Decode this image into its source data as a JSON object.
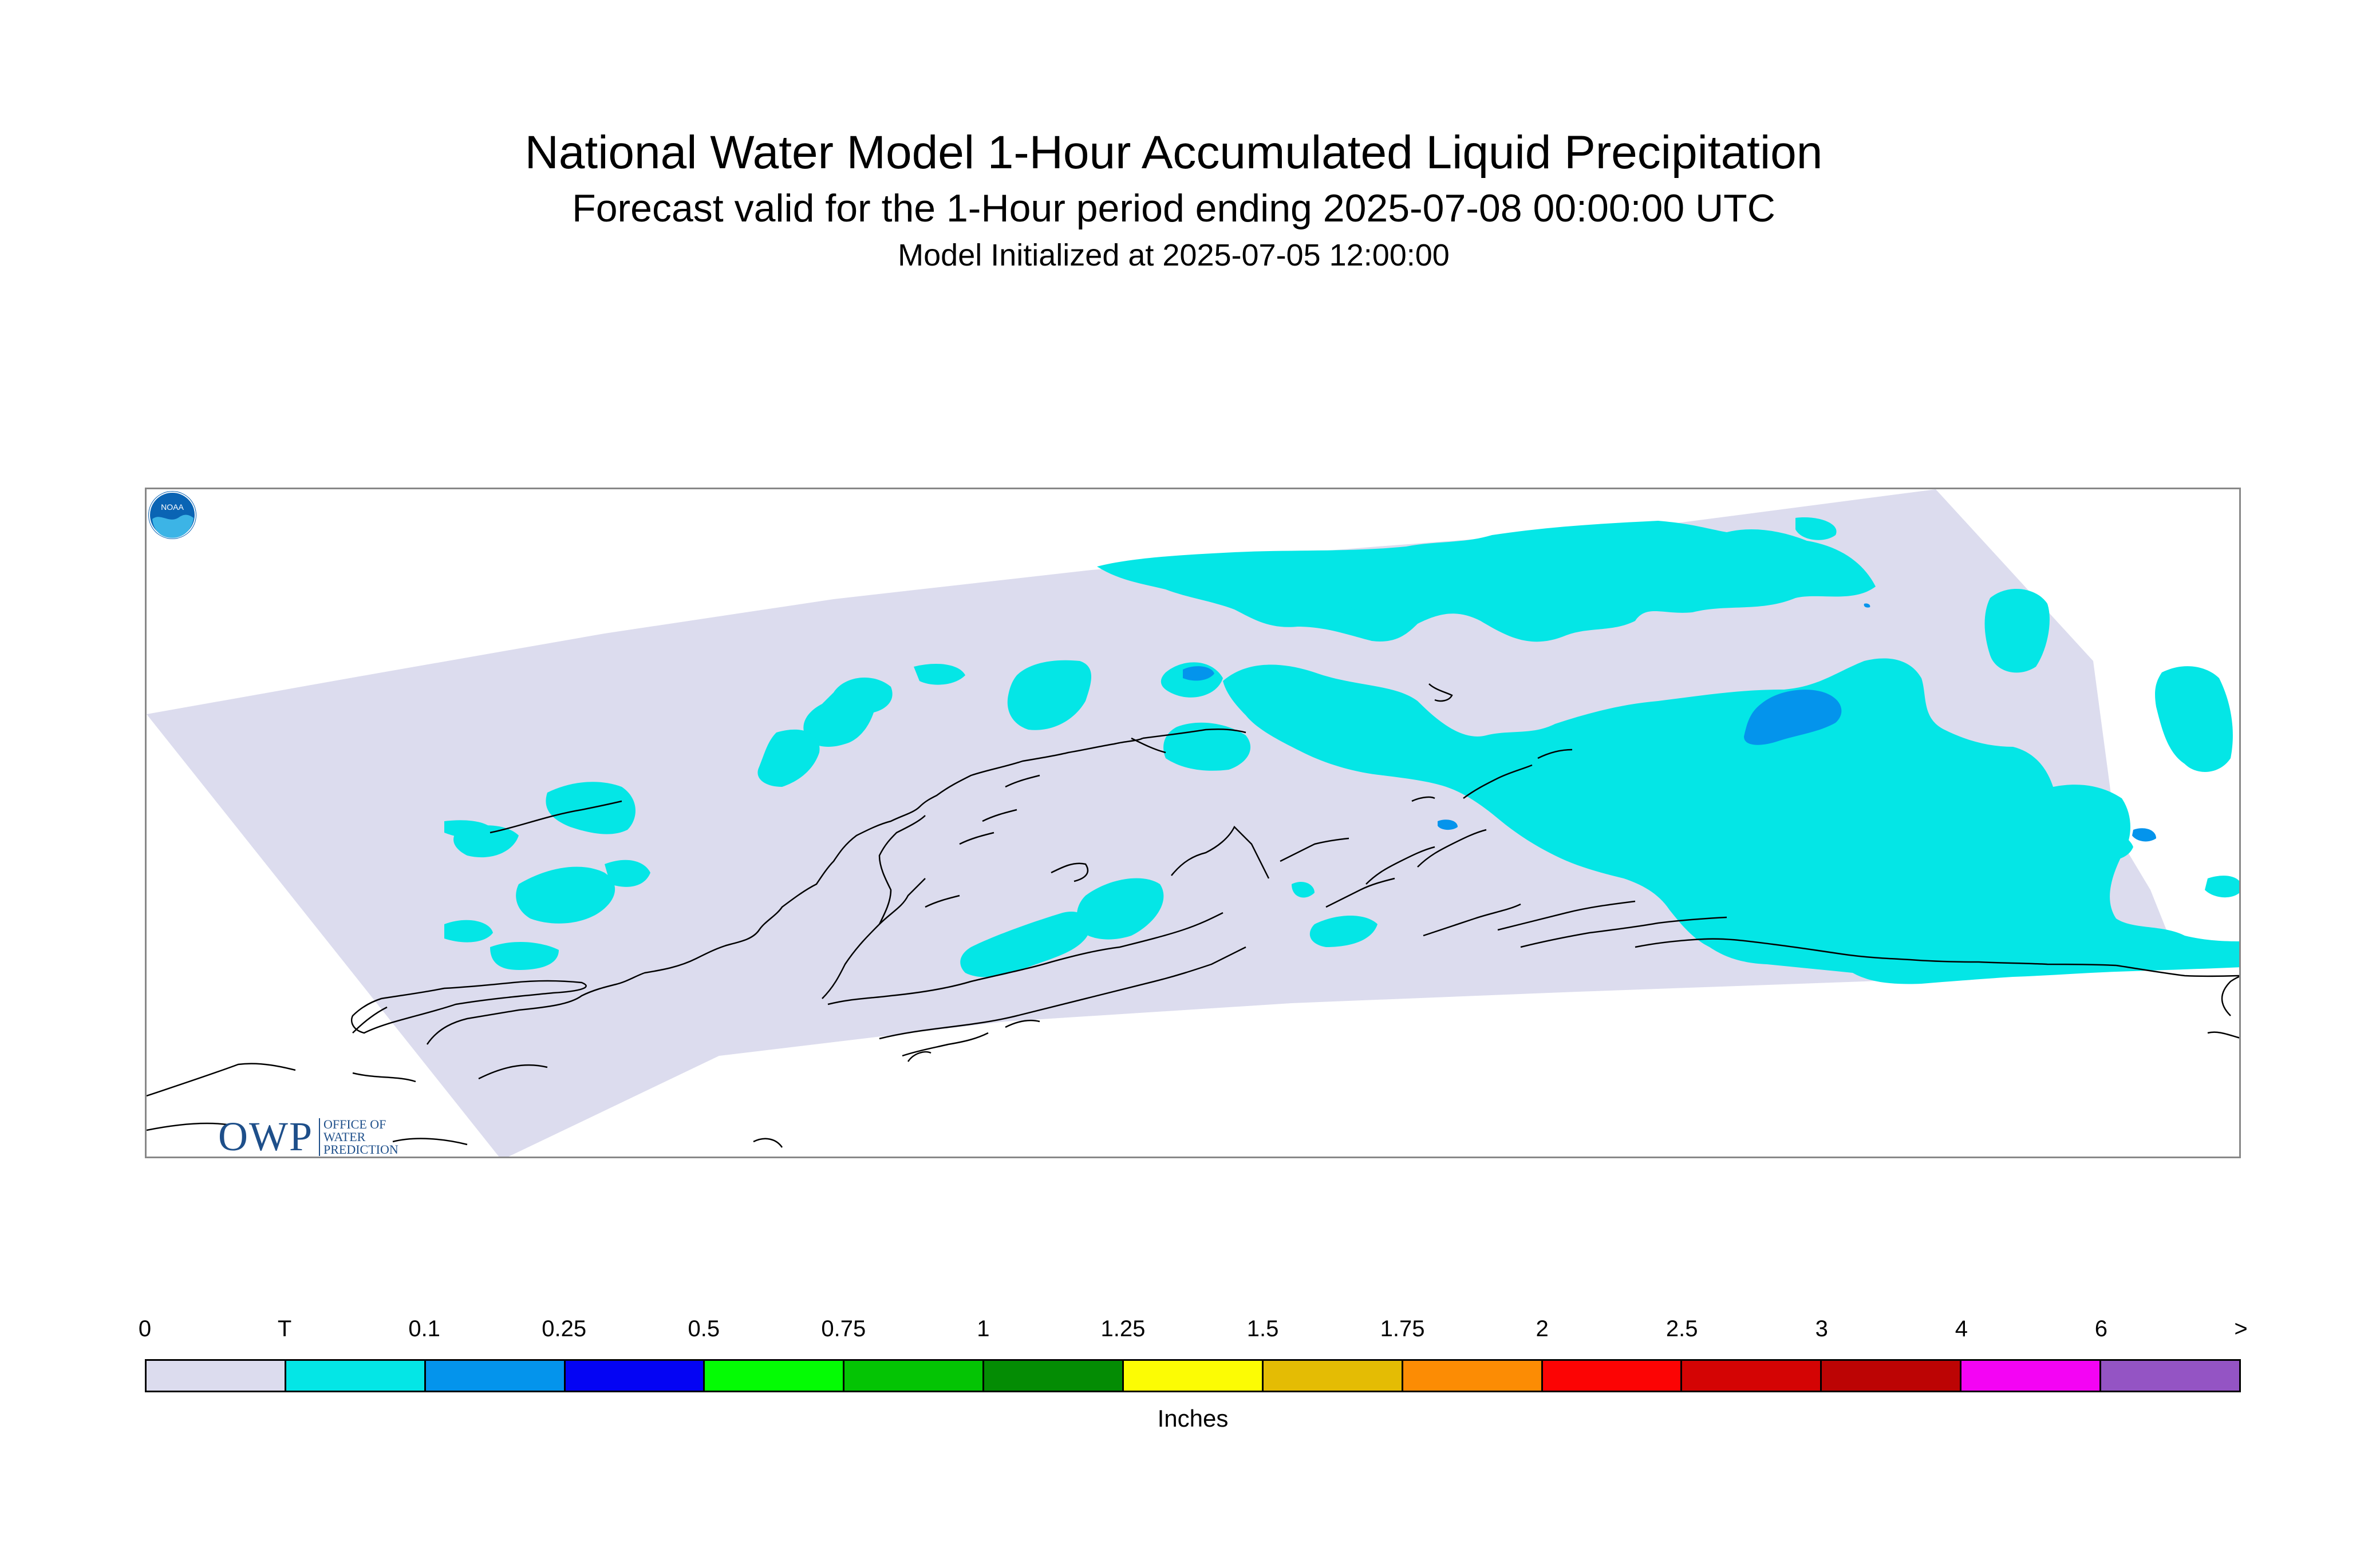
{
  "header": {
    "title": "National Water Model 1-Hour Accumulated Liquid Precipitation",
    "subtitle": "Forecast valid for the 1-Hour period ending 2025-07-08 00:00:00 UTC",
    "init": "Model Initialized at 2025-07-05 12:00:00"
  },
  "logos": {
    "owp_mark": "OWP",
    "owp_text_1": "OFFICE OF",
    "owp_text_2": "WATER",
    "owp_text_3": "PREDICTION",
    "noaa": "NOAA"
  },
  "colors": {
    "domain_fill": "#dcdcee",
    "trace": "#04e6e6",
    "light_blue": "#0494ec",
    "coast": "#000000"
  },
  "legend": {
    "labels": [
      "0",
      "T",
      "0.1",
      "0.25",
      "0.5",
      "0.75",
      "1",
      "1.25",
      "1.5",
      "1.75",
      "2",
      "2.5",
      "3",
      "4",
      "6",
      ">"
    ],
    "colors": [
      "#dcdcee",
      "#04e6e6",
      "#0494ec",
      "#0404f4",
      "#04fc04",
      "#04c404",
      "#048c04",
      "#fcfc04",
      "#e4bc04",
      "#fc8c04",
      "#fc0404",
      "#d40404",
      "#bc0404",
      "#f404f4",
      "#9454c4"
    ],
    "unit": "Inches"
  }
}
